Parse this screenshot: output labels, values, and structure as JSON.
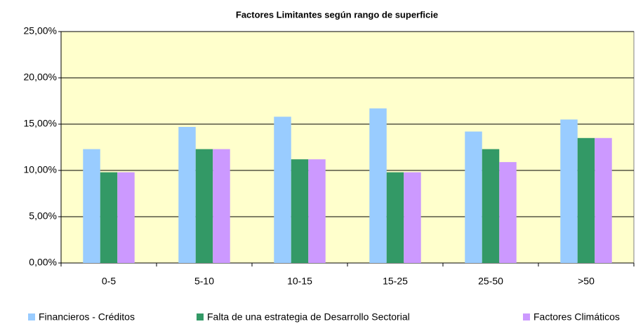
{
  "chart_data": {
    "type": "bar",
    "title": "Factores Limitantes según rango de superficie",
    "categories": [
      "0-5",
      "5-10",
      "10-15",
      "15-25",
      "25-50",
      ">50"
    ],
    "series": [
      {
        "name": "Financieros - Créditos",
        "color": "#99ccff",
        "values": [
          12.3,
          14.7,
          15.8,
          16.7,
          14.2,
          15.5
        ]
      },
      {
        "name": "Falta de una estrategia de Desarrollo Sectorial",
        "color": "#339966",
        "values": [
          9.8,
          12.3,
          11.2,
          9.8,
          12.3,
          13.5
        ]
      },
      {
        "name": "Factores Climáticos",
        "color": "#cc99ff",
        "values": [
          9.8,
          12.3,
          11.2,
          9.8,
          10.9,
          13.5
        ]
      }
    ],
    "ylim": [
      0,
      25
    ],
    "yticks": [
      {
        "value": 0,
        "label": "0,00%"
      },
      {
        "value": 5,
        "label": "5,00%"
      },
      {
        "value": 10,
        "label": "10,00%"
      },
      {
        "value": 15,
        "label": "15,00%"
      },
      {
        "value": 20,
        "label": "20,00%"
      },
      {
        "value": 25,
        "label": "25,00%"
      }
    ],
    "grid": true,
    "legend": "bottom",
    "plot_background": "#ffffcc"
  }
}
